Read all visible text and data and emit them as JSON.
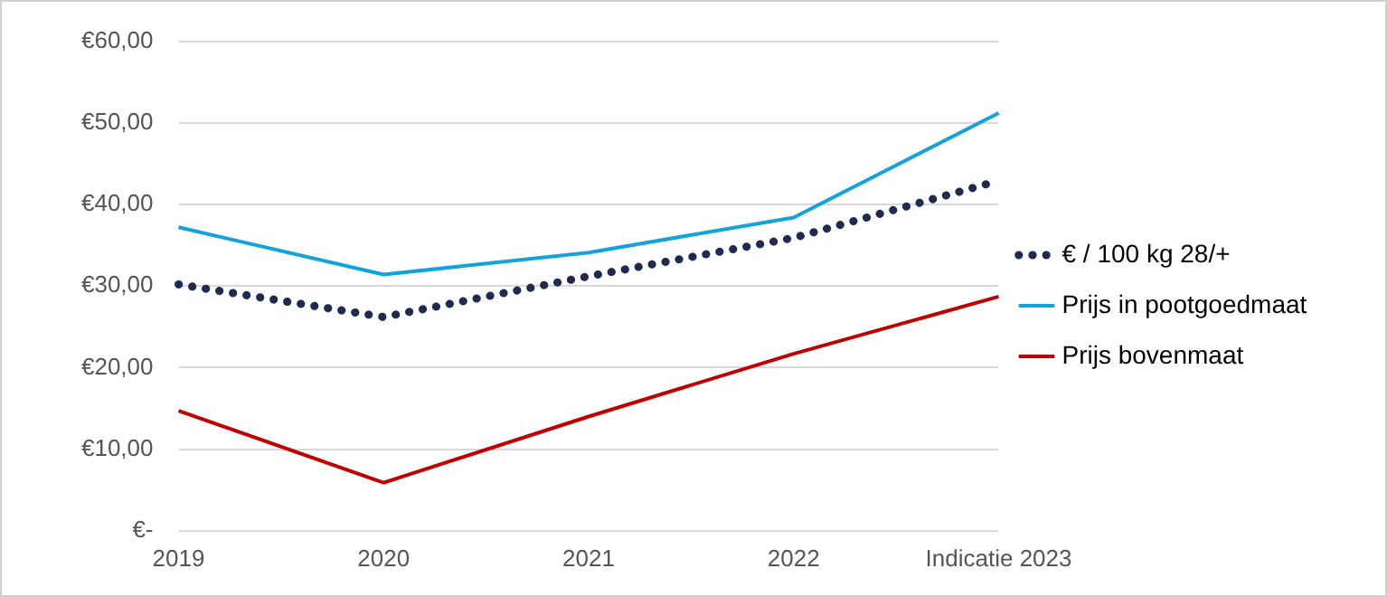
{
  "chart_data": {
    "type": "line",
    "categories": [
      "2019",
      "2020",
      "2021",
      "2022",
      "Indicatie 2023"
    ],
    "series": [
      {
        "name": "€ / 100 kg 28/+",
        "color": "#1f2a50",
        "values": [
          30.2,
          26.2,
          31.2,
          35.9,
          42.9
        ],
        "line_style": "dotted"
      },
      {
        "name": "Prijs in pootgoedmaat",
        "color": "#12a3dc",
        "values": [
          37.2,
          31.4,
          34.1,
          38.4,
          51.2
        ],
        "line_style": "solid"
      },
      {
        "name": "Prijs bovenmaat",
        "color": "#c00000",
        "values": [
          14.7,
          5.9,
          14.0,
          21.7,
          28.7
        ],
        "line_style": "solid"
      }
    ],
    "ylim": [
      0,
      60
    ],
    "yticks": [
      {
        "value": 0,
        "label": "€-"
      },
      {
        "value": 10,
        "label": "€10,00"
      },
      {
        "value": 20,
        "label": "€20,00"
      },
      {
        "value": 30,
        "label": "€30,00"
      },
      {
        "value": 40,
        "label": "€40,00"
      },
      {
        "value": 50,
        "label": "€50,00"
      },
      {
        "value": 60,
        "label": "€60,00"
      }
    ],
    "grid": "y",
    "legend": "right",
    "marker": "none"
  }
}
